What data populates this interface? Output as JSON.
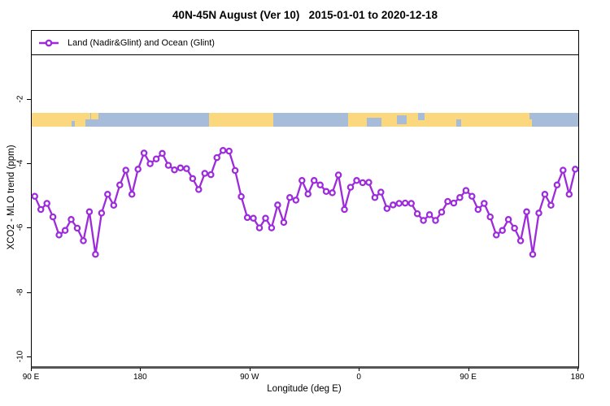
{
  "title": "40N-45N August (Ver 10)   2015-01-01 to 2020-12-18",
  "legend": {
    "label": "Land (Nadir&Glint) and Ocean (Glint)"
  },
  "chart_data": {
    "type": "line",
    "title": "40N-45N August (Ver 10)   2015-01-01 to 2020-12-18",
    "xlabel": "Longitude (deg E)",
    "ylabel": "XCO2 - MLO trend (ppm)",
    "xlim": [
      90,
      540
    ],
    "ylim": [
      -10.27,
      0.13
    ],
    "grid": false,
    "legend_position": "top-left full-width box",
    "x_ticks": [
      {
        "value": 90,
        "label": "90 E"
      },
      {
        "value": 180,
        "label": "180"
      },
      {
        "value": 270,
        "label": "90 W"
      },
      {
        "value": 360,
        "label": "0"
      },
      {
        "value": 450,
        "label": "90 E"
      },
      {
        "value": 540,
        "label": "180"
      }
    ],
    "y_ticks": [
      -2,
      -4,
      -6,
      -8,
      -10
    ],
    "series": [
      {
        "name": "Land (Nadir&Glint) and Ocean (Glint)",
        "color": "#9D2BDB",
        "marker": "open-circle",
        "x": [
          92.5,
          97.5,
          102.5,
          107.5,
          112.5,
          117.5,
          122.5,
          127.5,
          132.5,
          137.5,
          142.5,
          147.5,
          152.5,
          157.5,
          162.5,
          167.5,
          172.5,
          177.5,
          182.5,
          187.5,
          192.5,
          197.5,
          202.5,
          207.5,
          212.5,
          217.5,
          222.5,
          227.5,
          232.5,
          237.5,
          242.5,
          247.5,
          252.5,
          257.5,
          262.5,
          267.5,
          272.5,
          277.5,
          282.5,
          287.5,
          292.5,
          297.5,
          302.5,
          307.5,
          312.5,
          317.5,
          322.5,
          327.5,
          332.5,
          337.5,
          342.5,
          347.5,
          352.5,
          357.5,
          362.5,
          367.5,
          372.5,
          377.5,
          382.5,
          387.5,
          392.5,
          397.5,
          402.5,
          407.5,
          412.5,
          417.5,
          422.5,
          427.5,
          432.5,
          437.5,
          442.5,
          447.5,
          452.5,
          457.5,
          462.5,
          467.5,
          472.5,
          477.5,
          482.5,
          487.5,
          492.5,
          497.5,
          502.5,
          507.5,
          512.5,
          517.5,
          522.5,
          527.5,
          532.5,
          537.5
        ],
        "values": [
          -5.0,
          -5.41,
          -5.22,
          -5.64,
          -6.2,
          -6.06,
          -5.72,
          -5.99,
          -6.38,
          -5.48,
          -6.8,
          -5.52,
          -4.94,
          -5.28,
          -4.65,
          -4.19,
          -4.94,
          -4.16,
          -3.66,
          -3.99,
          -3.84,
          -3.67,
          -4.04,
          -4.18,
          -4.12,
          -4.14,
          -4.45,
          -4.79,
          -4.29,
          -4.33,
          -3.8,
          -3.58,
          -3.6,
          -4.2,
          -5.01,
          -5.66,
          -5.68,
          -5.98,
          -5.68,
          -5.98,
          -5.27,
          -5.81,
          -5.04,
          -5.12,
          -4.51,
          -4.93,
          -4.51,
          -4.65,
          -4.85,
          -4.89,
          -4.34,
          -5.41,
          -4.72,
          -4.51,
          -4.58,
          -4.57,
          -5.04,
          -4.87,
          -5.38,
          -5.27,
          -5.22,
          -5.21,
          -5.22,
          -5.54,
          -5.75,
          -5.57,
          -5.75,
          -5.49,
          -5.16,
          -5.21,
          -5.04,
          -4.82,
          -5.0,
          -5.41,
          -5.22,
          -5.64,
          -6.2,
          -6.06,
          -5.72,
          -5.99,
          -6.38,
          -5.48,
          -6.8,
          -5.52,
          -4.94,
          -5.28,
          -4.65,
          -4.19,
          -4.94,
          -4.16
        ]
      }
    ],
    "land_ocean_band": {
      "description": "horizontal strip marking land (yellow) vs ocean (blue) along longitude",
      "y_top": -2.41,
      "y_bottom": -2.84,
      "land_color": "#FBD87D",
      "ocean_color": "#A6BCD8",
      "segments": [
        {
          "from": 90,
          "to": 138.2,
          "type": "land"
        },
        {
          "from": 138.2,
          "to": 236,
          "type": "ocean"
        },
        {
          "from": 236,
          "to": 288.9,
          "type": "land"
        },
        {
          "from": 288.9,
          "to": 350.5,
          "type": "ocean"
        },
        {
          "from": 350.5,
          "to": 499.8,
          "type": "land"
        },
        {
          "from": 499.8,
          "to": 540,
          "type": "ocean"
        }
      ],
      "patches": [
        {
          "from": 122.8,
          "to": 125.5,
          "type": "ocean",
          "top": 0.6,
          "h": 0.4
        },
        {
          "from": 134.2,
          "to": 138.2,
          "type": "ocean",
          "top": 0.5,
          "h": 0.5
        },
        {
          "from": 138.9,
          "to": 144.9,
          "type": "land",
          "top": 0,
          "h": 0.45
        },
        {
          "from": 207.9,
          "to": 210.5,
          "type": "ocean",
          "top": 0,
          "h": 0.5
        },
        {
          "from": 365.9,
          "to": 377.9,
          "type": "ocean",
          "top": 0.35,
          "h": 0.65
        },
        {
          "from": 390.7,
          "to": 398.7,
          "type": "ocean",
          "top": 0.2,
          "h": 0.6
        },
        {
          "from": 408.1,
          "to": 413.4,
          "type": "ocean",
          "top": 0,
          "h": 0.55
        },
        {
          "from": 439.5,
          "to": 443.6,
          "type": "ocean",
          "top": 0.5,
          "h": 0.5
        },
        {
          "from": 492.4,
          "to": 501.8,
          "type": "land",
          "top": 0.45,
          "h": 0.55
        }
      ]
    }
  }
}
